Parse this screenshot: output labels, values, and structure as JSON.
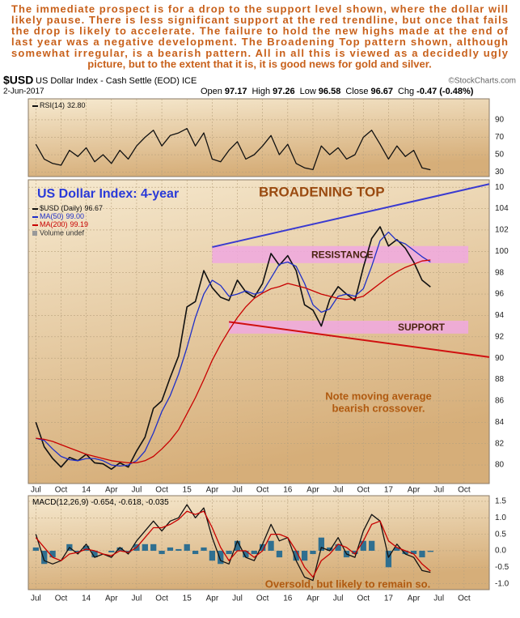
{
  "commentary": [
    "The immediate prospect is for a drop to the support level shown, where the dollar will",
    "likely pause. There is less significant support at the red trendline, but once that fails",
    "the drop is likely to accelerate. The failure to hold the new highs made at the end of",
    "last year was a negative development. The Broadening Top pattern shown, although",
    "somewhat irregular, is a bearish pattern. All in all this is viewed as a decidedly ugly",
    "picture, but to the extent that it is, it is good news for gold and silver."
  ],
  "header": {
    "symbol": "$USD",
    "name": "US Dollar Index - Cash Settle (EOD) ICE",
    "source": "©StockCharts.com",
    "date": "2-Jun-2017",
    "quote": [
      {
        "label": "Open",
        "value": 97.17
      },
      {
        "label": "High",
        "value": 97.26
      },
      {
        "label": "Low",
        "value": 96.58
      },
      {
        "label": "Close",
        "value": 96.67
      },
      {
        "label": "Chg",
        "value": -0.47
      }
    ],
    "change_pct": "(-0.48%)"
  },
  "chart_data": [
    {
      "type": "line",
      "xlim": [
        -0.9,
        54
      ],
      "ylim": [
        25,
        114
      ],
      "yticks": [
        90,
        70,
        50,
        30
      ],
      "grid": true,
      "x": [
        0,
        1,
        2,
        3,
        4,
        5,
        6,
        7,
        8,
        9,
        10,
        11,
        12,
        13,
        14,
        15,
        16,
        17,
        18,
        19,
        20,
        21,
        22,
        23,
        24,
        25,
        26,
        27,
        28,
        29,
        30,
        31,
        32,
        33,
        34,
        35,
        36,
        37,
        38,
        39,
        40,
        41,
        42,
        43,
        44,
        45,
        46,
        47
      ],
      "series": [
        {
          "name": "RSI(14)",
          "legend": "32.80",
          "color": "#111111",
          "values": [
            62,
            45,
            40,
            38,
            55,
            48,
            58,
            42,
            50,
            40,
            55,
            45,
            60,
            70,
            78,
            60,
            72,
            75,
            80,
            60,
            75,
            45,
            42,
            55,
            65,
            45,
            50,
            60,
            72,
            50,
            62,
            40,
            35,
            33,
            60,
            50,
            58,
            45,
            50,
            70,
            78,
            62,
            45,
            60,
            48,
            55,
            35,
            32.8
          ]
        }
      ]
    },
    {
      "type": "line",
      "xlim": [
        -0.9,
        54
      ],
      "ylim": [
        78.26,
        106.7
      ],
      "yticks": [
        {
          "value": 106,
          "label": "10"
        },
        104,
        102,
        100,
        98,
        96,
        94,
        92,
        90,
        88,
        86,
        84,
        82,
        80
      ],
      "xticks": [
        {
          "value": 0,
          "label": "Jul"
        },
        {
          "value": 3,
          "label": "Oct"
        },
        {
          "value": 6,
          "label": "14"
        },
        {
          "value": 9,
          "label": "Apr"
        },
        {
          "value": 12,
          "label": "Jul"
        },
        {
          "value": 15,
          "label": "Oct"
        },
        {
          "value": 18,
          "label": "15"
        },
        {
          "value": 21,
          "label": "Apr"
        },
        {
          "value": 24,
          "label": "Jul"
        },
        {
          "value": 27,
          "label": "Oct"
        },
        {
          "value": 30,
          "label": "16"
        },
        {
          "value": 33,
          "label": "Apr"
        },
        {
          "value": 36,
          "label": "Jul"
        },
        {
          "value": 39,
          "label": "Oct"
        },
        {
          "value": 42,
          "label": "17"
        },
        {
          "value": 45,
          "label": "Apr"
        },
        {
          "value": 48,
          "label": "Jul"
        },
        {
          "value": 51,
          "label": "Oct"
        }
      ],
      "grid": true,
      "x": [
        0,
        1,
        2,
        3,
        4,
        5,
        6,
        7,
        8,
        9,
        10,
        11,
        12,
        13,
        14,
        15,
        16,
        17,
        18,
        19,
        20,
        21,
        22,
        23,
        24,
        25,
        26,
        27,
        28,
        29,
        30,
        31,
        32,
        33,
        34,
        35,
        36,
        37,
        38,
        39,
        40,
        41,
        42,
        43,
        44,
        45,
        46,
        47
      ],
      "series": [
        {
          "name": "$USD (Daily)",
          "legend": "96.67",
          "color": "#111111",
          "values": [
            84.0,
            81.7,
            80.6,
            79.8,
            80.7,
            80.4,
            81.0,
            80.2,
            80.1,
            79.6,
            80.2,
            79.8,
            81.3,
            82.6,
            85.3,
            86.0,
            88.2,
            90.2,
            94.8,
            95.3,
            98.2,
            96.6,
            95.7,
            95.4,
            97.3,
            96.2,
            95.7,
            97.0,
            99.8,
            98.7,
            99.6,
            98.2,
            95.0,
            94.5,
            93.0,
            95.5,
            96.7,
            96.0,
            95.4,
            98.5,
            101.2,
            102.3,
            100.5,
            101.1,
            100.3,
            99.0,
            97.3,
            96.67
          ]
        },
        {
          "name": "MA(50)",
          "legend": "99.00",
          "color": "#1f2fc8",
          "values": [
            82.5,
            82.3,
            81.5,
            80.8,
            80.5,
            80.4,
            80.6,
            80.6,
            80.4,
            80.0,
            79.9,
            80.0,
            80.4,
            81.3,
            83.0,
            85.0,
            86.5,
            88.5,
            91.0,
            93.8,
            96.0,
            97.3,
            96.8,
            95.8,
            96.0,
            96.3,
            96.0,
            96.2,
            97.5,
            98.8,
            99.0,
            98.6,
            97.0,
            95.0,
            94.3,
            94.6,
            95.8,
            96.0,
            95.8,
            96.5,
            98.6,
            101.0,
            101.8,
            101.0,
            100.7,
            100.1,
            99.5,
            99.0
          ]
        },
        {
          "name": "MA(200)",
          "legend": "99.19",
          "color": "#c80000",
          "values": [
            82.5,
            82.4,
            82.2,
            81.9,
            81.6,
            81.3,
            81.0,
            80.8,
            80.6,
            80.4,
            80.3,
            80.2,
            80.2,
            80.4,
            80.8,
            81.5,
            82.3,
            83.3,
            84.8,
            86.3,
            88.0,
            89.8,
            91.3,
            92.6,
            93.8,
            94.8,
            95.6,
            96.1,
            96.5,
            96.7,
            97.0,
            96.8,
            96.6,
            96.3,
            96.0,
            95.8,
            95.6,
            95.5,
            95.6,
            95.8,
            96.4,
            97.0,
            97.6,
            98.1,
            98.5,
            98.8,
            99.1,
            99.19
          ]
        }
      ],
      "extra_legend": "Volume undef",
      "bands": [
        {
          "label": "RESISTANCE",
          "ylim": [
            98.9,
            100.5
          ],
          "xlim": [
            21,
            51.5
          ],
          "color": "#f0a8e0"
        },
        {
          "label": "SUPPORT",
          "ylim": [
            92.3,
            93.5
          ],
          "xlim": [
            23,
            51.5
          ],
          "color": "#f0a8e0"
        }
      ],
      "trendlines": [
        {
          "color": "#3a3ad0",
          "x": [
            21,
            54
          ],
          "y": [
            100.4,
            106.3
          ]
        },
        {
          "color": "#d01010",
          "x": [
            23,
            54
          ],
          "y": [
            93.4,
            90.1
          ]
        }
      ],
      "annotations": [
        {
          "text": "US Dollar Index: 4-year",
          "color": "#2a3ad8"
        },
        {
          "text": "BROADENING TOP",
          "color": "#9a4a10"
        },
        {
          "text": "Note moving average",
          "color": "#b05a10"
        },
        {
          "text": "bearish crossover.",
          "color": "#b05a10"
        }
      ]
    },
    {
      "type": "line",
      "xlim": [
        -0.9,
        54
      ],
      "ylim": [
        -1.18,
        1.67
      ],
      "yticks": [
        1.5,
        {
          "value": 1,
          "label": "1.0"
        },
        0.5,
        {
          "value": 0,
          "label": "0.0"
        },
        -0.5,
        {
          "value": -1,
          "label": "-1.0"
        }
      ],
      "xticks": [
        {
          "value": 0,
          "label": "Jul"
        },
        {
          "value": 3,
          "label": "Oct"
        },
        {
          "value": 6,
          "label": "14"
        },
        {
          "value": 9,
          "label": "Apr"
        },
        {
          "value": 12,
          "label": "Jul"
        },
        {
          "value": 15,
          "label": "Oct"
        },
        {
          "value": 18,
          "label": "15"
        },
        {
          "value": 21,
          "label": "Apr"
        },
        {
          "value": 24,
          "label": "Jul"
        },
        {
          "value": 27,
          "label": "Oct"
        },
        {
          "value": 30,
          "label": "16"
        },
        {
          "value": 33,
          "label": "Apr"
        },
        {
          "value": 36,
          "label": "Jul"
        },
        {
          "value": 39,
          "label": "Oct"
        },
        {
          "value": 42,
          "label": "17"
        },
        {
          "value": 45,
          "label": "Apr"
        },
        {
          "value": 48,
          "label": "Jul"
        },
        {
          "value": 51,
          "label": "Oct"
        }
      ],
      "grid": true,
      "x": [
        0,
        1,
        2,
        3,
        4,
        5,
        6,
        7,
        8,
        9,
        10,
        11,
        12,
        13,
        14,
        15,
        16,
        17,
        18,
        19,
        20,
        21,
        22,
        23,
        24,
        25,
        26,
        27,
        28,
        29,
        30,
        31,
        32,
        33,
        34,
        35,
        36,
        37,
        38,
        39,
        40,
        41,
        42,
        43,
        44,
        45,
        46,
        47
      ],
      "legend_name": "MACD(12,26,9)",
      "legend": "-0.654, -0.618, -0.035",
      "series": [
        {
          "kind": "bar",
          "color": "#2f6f90",
          "values": [
            0.1,
            -0.4,
            -0.2,
            0.0,
            0.2,
            -0.05,
            0.15,
            -0.2,
            0.0,
            -0.05,
            0.1,
            -0.05,
            0.2,
            0.2,
            0.2,
            -0.1,
            0.1,
            0.05,
            0.2,
            -0.1,
            0.1,
            -0.3,
            -0.4,
            -0.1,
            0.3,
            -0.2,
            -0.1,
            0.2,
            0.3,
            -0.2,
            0.0,
            -0.3,
            -0.3,
            -0.1,
            0.4,
            0.1,
            0.2,
            -0.2,
            -0.1,
            0.3,
            0.3,
            0.0,
            -0.5,
            0.1,
            -0.1,
            -0.1,
            -0.2,
            -0.035
          ]
        },
        {
          "kind": "line",
          "color": "#111111",
          "values": [
            0.5,
            -0.3,
            -0.4,
            -0.3,
            0.1,
            -0.1,
            0.2,
            -0.2,
            -0.1,
            -0.2,
            0.1,
            -0.1,
            0.3,
            0.6,
            0.9,
            0.6,
            0.9,
            1.0,
            1.4,
            1.0,
            1.3,
            0.4,
            -0.3,
            -0.4,
            0.3,
            -0.2,
            -0.3,
            0.2,
            0.8,
            0.3,
            0.4,
            -0.3,
            -0.8,
            -0.9,
            0.1,
            0.0,
            0.4,
            -0.1,
            -0.2,
            0.6,
            1.1,
            0.9,
            -0.2,
            0.2,
            -0.1,
            -0.2,
            -0.6,
            -0.654
          ]
        },
        {
          "kind": "line",
          "color": "#c80000",
          "values": [
            0.4,
            0.1,
            -0.2,
            -0.3,
            -0.1,
            -0.05,
            0.05,
            0.0,
            -0.1,
            -0.15,
            0.0,
            -0.05,
            0.1,
            0.4,
            0.7,
            0.7,
            0.8,
            0.95,
            1.2,
            1.1,
            1.2,
            0.7,
            0.1,
            -0.3,
            0.0,
            0.0,
            -0.2,
            0.0,
            0.5,
            0.5,
            0.4,
            0.0,
            -0.5,
            -0.8,
            -0.3,
            -0.1,
            0.2,
            0.1,
            -0.1,
            0.3,
            0.8,
            0.9,
            0.3,
            0.1,
            0.0,
            -0.1,
            -0.4,
            -0.618
          ]
        }
      ],
      "annotations": [
        {
          "text": "Oversold, but likely to remain so.",
          "color": "#b05a10"
        }
      ]
    }
  ]
}
